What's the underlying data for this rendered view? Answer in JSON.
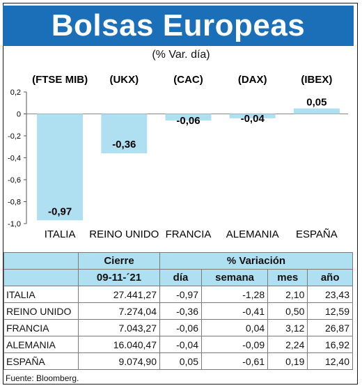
{
  "header": {
    "title": "Bolsas Europeas",
    "subtitle": "(% Var. día)"
  },
  "chart_data": {
    "type": "bar",
    "categories": [
      "ITALIA",
      "REINO UNIDO",
      "FRANCIA",
      "ALEMANIA",
      "ESPAÑA"
    ],
    "index_codes": [
      "(FTSE MIB)",
      "(UKX)",
      "(CAC)",
      "(DAX)",
      "(IBEX)"
    ],
    "values": [
      -0.97,
      -0.36,
      -0.06,
      -0.04,
      0.05
    ],
    "value_labels": [
      "-0,97",
      "-0,36",
      "-0,06",
      "-0,04",
      "0,05"
    ],
    "ylim": [
      -1.0,
      0.2
    ],
    "yticks": [
      0.2,
      0,
      -0.2,
      -0.4,
      -0.6,
      -0.8,
      -1.0
    ],
    "ytick_labels": [
      "0,2",
      "0",
      "-0,2",
      "-0,4",
      "-0,6",
      "-0,8",
      "-1,0"
    ],
    "bar_color": "#aee0f2",
    "grid": false
  },
  "table": {
    "header_cierre": "Cierre",
    "header_variacion": "% Variación",
    "header_date": "09-11-´21",
    "sub_headers": [
      "día",
      "semana",
      "mes",
      "año"
    ],
    "rows": [
      {
        "name": "ITALIA",
        "cierre": "27.441,27",
        "dia": "-0,97",
        "semana": "-1,28",
        "mes": "2,10",
        "ano": "23,43"
      },
      {
        "name": "REINO UNIDO",
        "cierre": "7.274,04",
        "dia": "-0,36",
        "semana": "-0,41",
        "mes": "0,50",
        "ano": "12,59"
      },
      {
        "name": "FRANCIA",
        "cierre": "7.043,27",
        "dia": "-0,06",
        "semana": "0,04",
        "mes": "3,12",
        "ano": "26,87"
      },
      {
        "name": "ALEMANIA",
        "cierre": "16.040,47",
        "dia": "-0,04",
        "semana": "-0,09",
        "mes": "2,24",
        "ano": "16,92"
      },
      {
        "name": "ESPAÑA",
        "cierre": "9.074,90",
        "dia": "0,05",
        "semana": "-0,61",
        "mes": "0,19",
        "ano": "12,40"
      }
    ]
  },
  "source": "Fuente: Bloomberg."
}
